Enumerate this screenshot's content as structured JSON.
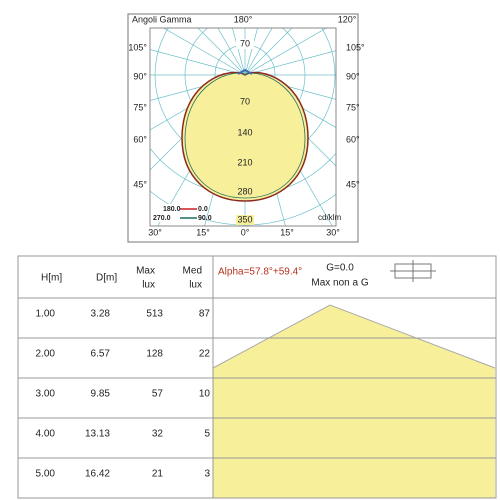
{
  "diagram": {
    "title": "Angoli Gamma",
    "top_angles": [
      "180°",
      "120°"
    ],
    "left_angles": [
      "105°",
      "90°",
      "75°",
      "60°",
      "45°"
    ],
    "right_angles": [
      "105°",
      "90°",
      "75°",
      "60°",
      "45°"
    ],
    "bottom_angles": [
      "30°",
      "15°",
      "0°",
      "15°",
      "30°"
    ],
    "radial_labels": [
      "70",
      "70",
      "140",
      "210",
      "280",
      "350"
    ],
    "legend": [
      {
        "from": "180.0",
        "to": "0.0"
      },
      {
        "from": "270.0",
        "to": "90.0"
      }
    ],
    "unit": "cd/klm"
  },
  "table": {
    "header": [
      [
        "H[m]"
      ],
      [
        "D[m]"
      ],
      [
        "Max",
        "lux"
      ],
      [
        "Med",
        "lux"
      ]
    ],
    "alpha": "Alpha=57.8°+59.4°",
    "plane": [
      "G=0.0",
      "Max non a G"
    ],
    "rows": [
      [
        "1.00",
        "3.28",
        "513",
        "87"
      ],
      [
        "2.00",
        "6.57",
        "128",
        "22"
      ],
      [
        "3.00",
        "9.85",
        "57",
        "10"
      ],
      [
        "4.00",
        "13.13",
        "32",
        "5"
      ],
      [
        "5.00",
        "16.42",
        "21",
        "3"
      ]
    ]
  }
}
